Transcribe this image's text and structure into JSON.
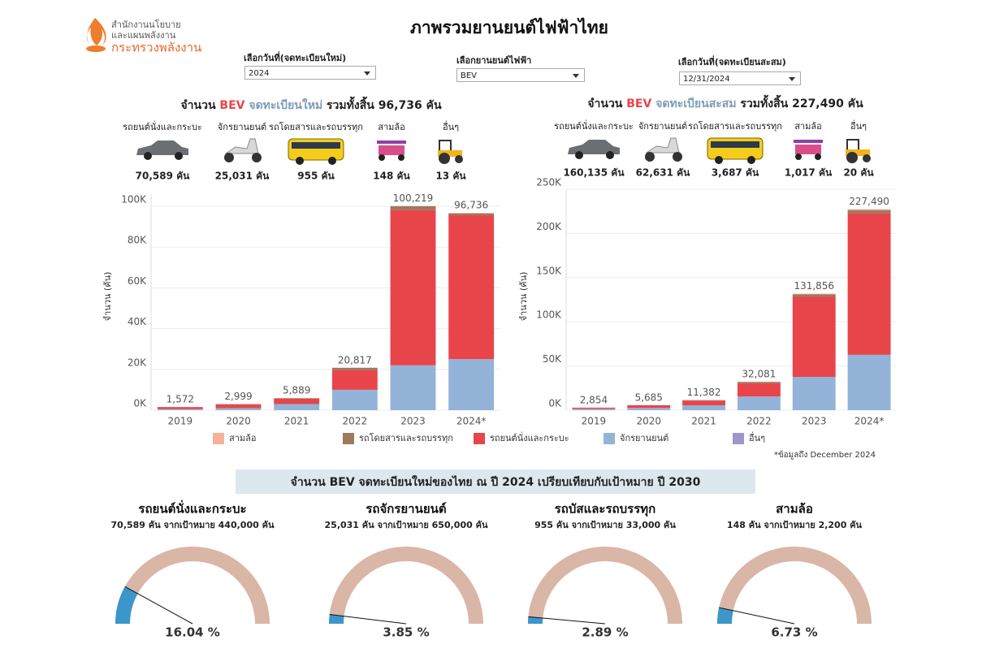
{
  "header": {
    "org_line1": "สำนักงานนโยบาย",
    "org_line2": "และแผนพลังงาน",
    "org_line3": "กระทรวงพลังงาน",
    "title": "ภาพรวมยานยนต์ไฟฟ้าไทย"
  },
  "filters": [
    {
      "label": "เลือกวันที่(จดทะเบียนใหม่)",
      "value": "2024"
    },
    {
      "label": "เลือกยานยนต์ไฟฟ้า",
      "value": "BEV"
    },
    {
      "label": "เลือกวันที่(จดทะเบียนสะสม)",
      "value": "12/31/2024"
    }
  ],
  "chart_data": [
    {
      "type": "bar",
      "stacked": true,
      "grid": true,
      "heading": {
        "prefix": "จำนวน",
        "fuel": "BEV",
        "kind": "จดทะเบียนใหม่",
        "total": "รวมทั้งสิ้น 96,736 คัน"
      },
      "vehicle_counts": [
        {
          "label": "รถยนต์นั่งและกระบะ",
          "count": "70,589 คัน"
        },
        {
          "label": "จักรยานยนต์",
          "count": "25,031 คัน"
        },
        {
          "label": "รถโดยสารและรถบรรทุก",
          "count": "955 คัน"
        },
        {
          "label": "สามล้อ",
          "count": "148 คัน"
        },
        {
          "label": "อื่นๆ",
          "count": "13 คัน"
        }
      ],
      "y_label": "จำนวน (คัน)",
      "categories": [
        "2019",
        "2020",
        "2021",
        "2022",
        "2023",
        "2024*"
      ],
      "series": [
        {
          "name": "สามล้อ",
          "color": "#f6b09c",
          "values": [
            10,
            17,
            17,
            15,
            110,
            148
          ]
        },
        {
          "name": "รถโดยสารและรถบรรทุก",
          "color": "#9c7a5f",
          "values": [
            60,
            80,
            270,
            1100,
            1800,
            955
          ]
        },
        {
          "name": "รถยนต์นั่งและกระบะ",
          "color": "#e8454b",
          "values": [
            1000,
            1900,
            2600,
            9700,
            76300,
            70589
          ]
        },
        {
          "name": "จักรยานยนต์",
          "color": "#93b3d8",
          "values": [
            500,
            1000,
            3000,
            10000,
            22000,
            25031
          ]
        },
        {
          "name": "อื่นๆ",
          "color": "#9e95c9",
          "values": [
            2,
            2,
            2,
            2,
            9,
            13
          ]
        }
      ],
      "totals": [
        1572,
        2999,
        5889,
        20817,
        100219,
        96736
      ],
      "total_labels": [
        "1,572",
        "2,999",
        "5,889",
        "20,817",
        "100,219",
        "96,736"
      ],
      "ylim": [
        0,
        106000
      ],
      "yticks": [
        {
          "value": 0,
          "label": "0K"
        },
        {
          "value": 20000,
          "label": "20K"
        },
        {
          "value": 40000,
          "label": "40K"
        },
        {
          "value": 60000,
          "label": "60K"
        },
        {
          "value": 80000,
          "label": "80K"
        },
        {
          "value": 100000,
          "label": "100K"
        }
      ]
    },
    {
      "type": "bar",
      "stacked": true,
      "grid": true,
      "heading": {
        "prefix": "จำนวน",
        "fuel": "BEV",
        "kind": "จดทะเบียนสะสม",
        "total": "รวมทั้งสิ้น 227,490 คัน"
      },
      "vehicle_counts": [
        {
          "label": "รถยนต์นั่งและกระบะ",
          "count": "160,135 คัน"
        },
        {
          "label": "จักรยานยนต์",
          "count": "62,631 คัน"
        },
        {
          "label": "รถโดยสารและรถบรรทุก",
          "count": "3,687 คัน"
        },
        {
          "label": "สามล้อ",
          "count": "1,017 คัน"
        },
        {
          "label": "อื่นๆ",
          "count": "20 คัน"
        }
      ],
      "y_label": "จำนวน (คัน)",
      "categories": [
        "2019",
        "2020",
        "2021",
        "2022",
        "2023",
        "2024*"
      ],
      "series": [
        {
          "color": "#f6b09c",
          "values": [
            2,
            13,
            38,
            45,
            869,
            1017
          ]
        },
        {
          "color": "#9c7a5f",
          "values": [
            50,
            170,
            440,
            1530,
            2732,
            3687
          ]
        },
        {
          "color": "#e8454b",
          "values": [
            1300,
            3000,
            5400,
            15000,
            90648,
            160135
          ]
        },
        {
          "color": "#93b3d8",
          "values": [
            1500,
            2500,
            5500,
            15500,
            37600,
            62631
          ]
        },
        {
          "color": "#9e95c9",
          "values": [
            2,
            2,
            4,
            6,
            7,
            20
          ]
        }
      ],
      "totals": [
        2854,
        5685,
        11382,
        32081,
        131856,
        227490
      ],
      "total_labels": [
        "2,854",
        "5,685",
        "11,382",
        "32,081",
        "131,856",
        "227,490"
      ],
      "ylim": [
        0,
        250000
      ],
      "yticks": [
        {
          "value": 0,
          "label": "0K"
        },
        {
          "value": 50000,
          "label": "50K"
        },
        {
          "value": 100000,
          "label": "100K"
        },
        {
          "value": 150000,
          "label": "150K"
        },
        {
          "value": 200000,
          "label": "200K"
        },
        {
          "value": 250000,
          "label": "250K"
        }
      ]
    }
  ],
  "note": "*ข้อมูลถึง December 2024",
  "targets": {
    "title": "จำนวน BEV จดทะเบียนใหม่ของไทย ณ ปี 2024 เปรียบเทียบกับเป้าหมาย ปี 2030",
    "gauges": [
      {
        "title": "รถยนต์นั่งและกระบะ",
        "subtitle": "70,589 คัน จากเป้าหมาย 440,000 คัน",
        "percent": 16.04,
        "percent_label": "16.04 %"
      },
      {
        "title": "รถจักรยานยนต์",
        "subtitle": "25,031 คัน จากเป้าหมาย 650,000 คัน",
        "percent": 3.85,
        "percent_label": "3.85 %"
      },
      {
        "title": "รถบัสและรถบรรทุก",
        "subtitle": "955 คัน จากเป้าหมาย 33,000 คัน",
        "percent": 2.89,
        "percent_label": "2.89 %"
      },
      {
        "title": "สามล้อ",
        "subtitle": "148 คัน จากเป้าหมาย 2,200 คัน",
        "percent": 6.73,
        "percent_label": "6.73 %"
      }
    ]
  }
}
